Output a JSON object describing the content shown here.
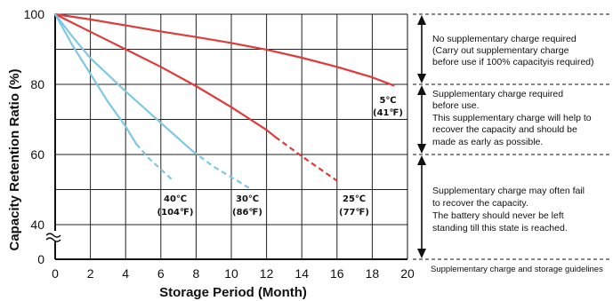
{
  "chart_data": {
    "type": "line",
    "title": "",
    "xlabel": "Storage Period (Month)",
    "ylabel": "Capacity Retention Ratio (%)",
    "xlim": [
      0,
      20
    ],
    "ylim": [
      40,
      100
    ],
    "x_ticks": [
      "0",
      "2",
      "4",
      "6",
      "8",
      "10",
      "12",
      "14",
      "16",
      "18",
      "20"
    ],
    "y_ticks": [
      {
        "value": 100,
        "label": "100"
      },
      {
        "value": 80,
        "label": "80"
      },
      {
        "value": 60,
        "label": "60"
      },
      {
        "value": 40,
        "label": "40"
      },
      {
        "value": 0,
        "label": "0"
      }
    ],
    "axis_break": true,
    "grid": true,
    "series": [
      {
        "label_top": "5℃",
        "label_bottom": "(41℉)",
        "color": "#e03a3a",
        "width": 2.2,
        "solid": [
          [
            0,
            100
          ],
          [
            2,
            98.5
          ],
          [
            4,
            96.8
          ],
          [
            6,
            95.1
          ],
          [
            8,
            93.5
          ],
          [
            10,
            91.8
          ],
          [
            12,
            89.9
          ],
          [
            14,
            87.6
          ],
          [
            16,
            85
          ],
          [
            18,
            82
          ],
          [
            19.2,
            79.7
          ]
        ],
        "dashed": []
      },
      {
        "label_top": "25℃",
        "label_bottom": "(77℉)",
        "color": "#e03a3a",
        "width": 2.2,
        "solid": [
          [
            0,
            100
          ],
          [
            2,
            95
          ],
          [
            4,
            90
          ],
          [
            6,
            85
          ],
          [
            8,
            79.5
          ],
          [
            10,
            73.5
          ],
          [
            12,
            67
          ],
          [
            12.5,
            65
          ]
        ],
        "dashed": [
          [
            12.5,
            65
          ],
          [
            14,
            59.5
          ],
          [
            16,
            52.5
          ]
        ]
      },
      {
        "label_top": "30℃",
        "label_bottom": "(86℉)",
        "color": "#7ec8e3",
        "width": 2.2,
        "solid": [
          [
            0,
            100
          ],
          [
            1,
            93.5
          ],
          [
            2,
            87.5
          ],
          [
            4,
            78
          ],
          [
            6,
            69
          ],
          [
            7.8,
            61
          ]
        ],
        "dashed": [
          [
            7.8,
            61
          ],
          [
            9,
            56.5
          ],
          [
            11,
            50.5
          ]
        ]
      },
      {
        "label_top": "40℃",
        "label_bottom": "(104℉)",
        "color": "#7ec8e3",
        "width": 2.2,
        "solid": [
          [
            0,
            100
          ],
          [
            1,
            91
          ],
          [
            2,
            83
          ],
          [
            3,
            75
          ],
          [
            4,
            68
          ],
          [
            4.6,
            63
          ]
        ],
        "dashed": [
          [
            4.6,
            63
          ],
          [
            5.3,
            59
          ],
          [
            6.6,
            53
          ]
        ]
      }
    ]
  },
  "guide": {
    "zones": [
      {
        "lines": [
          "No supplementary charge required",
          "(Carry out supplementary charge",
          "before use if 100% capacityis required)"
        ]
      },
      {
        "lines": [
          "Supplementary charge required",
          "before use.",
          "This supplementary charge will help to",
          "recover  the capacity and should be",
          "made as early as possible."
        ]
      },
      {
        "lines": [
          "Supplementary charge may often fail",
          "to recover the capacity.",
          "The battery should never be left",
          "standing till this state is reached."
        ]
      }
    ],
    "footer": "Supplementary charge and storage guidelines"
  }
}
